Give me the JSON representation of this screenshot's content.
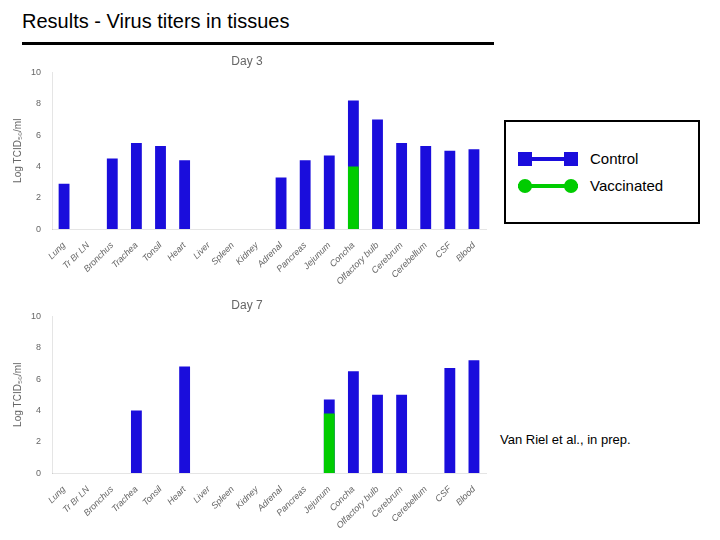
{
  "title": "Results - Virus titers in tissues",
  "annotations": [
    "Van Riel et al., in prep."
  ],
  "legend": "right",
  "chart_data": [
    {
      "type": "bar",
      "title": "Day 3",
      "categories": [
        "Lung",
        "Tr Br LN",
        "Bronchus",
        "Trachea",
        "Tonsil",
        "Heart",
        "Liver",
        "Spleen",
        "Kidney",
        "Adrenal",
        "Pancreas",
        "Jejunum",
        "Concha",
        "Olfactory bulb",
        "Cerebrum",
        "Cerebellum",
        "CSF",
        "Blood"
      ],
      "series": [
        {
          "name": "Control",
          "color": "#1a0ddc",
          "marker": "square",
          "values": [
            2.9,
            0,
            4.5,
            5.5,
            5.3,
            4.4,
            0,
            0,
            0,
            3.3,
            4.4,
            4.7,
            8.2,
            7.0,
            5.5,
            5.3,
            5.0,
            5.1
          ]
        },
        {
          "name": "Vaccinated",
          "color": "#00cc00",
          "marker": "circle",
          "values": [
            0,
            0,
            0,
            0,
            0,
            0,
            0,
            0,
            0,
            0,
            0,
            0,
            4.0,
            0,
            0,
            0,
            0,
            0
          ]
        }
      ],
      "ylabel": "Log TCID₅₀/ml",
      "ylim": [
        0,
        10
      ],
      "yticks": [
        0,
        2,
        4,
        6,
        8,
        10
      ],
      "grid": false
    },
    {
      "type": "bar",
      "title": "Day 7",
      "categories": [
        "Lung",
        "Tr Br LN",
        "Bronchus",
        "Trachea",
        "Tonsil",
        "Heart",
        "Liver",
        "Spleen",
        "Kidney",
        "Adrenal",
        "Pancreas",
        "Jejunum",
        "Concha",
        "Olfactory bulb",
        "Cerebrum",
        "Cerebellum",
        "CSF",
        "Blood"
      ],
      "series": [
        {
          "name": "Control",
          "color": "#1a0ddc",
          "marker": "square",
          "values": [
            0,
            0,
            0,
            4.0,
            0,
            6.8,
            0,
            0,
            0,
            0,
            0,
            4.7,
            6.5,
            5.0,
            5.0,
            0,
            6.7,
            7.2
          ]
        },
        {
          "name": "Vaccinated",
          "color": "#00cc00",
          "marker": "circle",
          "values": [
            0,
            0,
            0,
            0,
            0,
            0,
            0,
            0,
            0,
            0,
            0,
            3.8,
            0,
            0,
            0,
            0,
            0,
            0
          ]
        }
      ],
      "ylabel": "Log TCID₅₀/ml",
      "ylim": [
        0,
        10
      ],
      "yticks": [
        0,
        2,
        4,
        6,
        8,
        10
      ],
      "grid": false
    }
  ]
}
